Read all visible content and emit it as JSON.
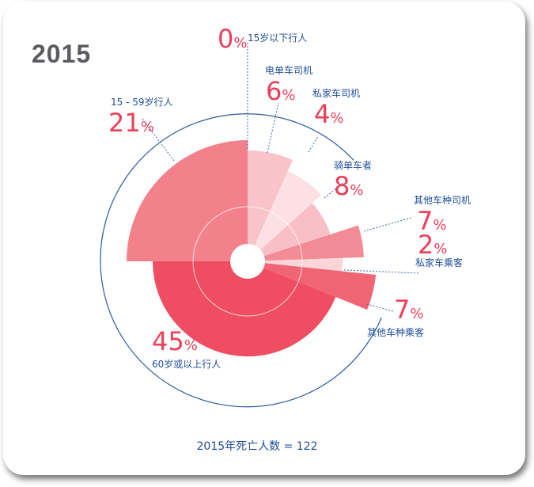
{
  "page": {
    "year_title": "2015",
    "caption": "2015年死亡人数 = 122",
    "colors": {
      "accent": "#ee3e57",
      "text_blue": "#1f4e99",
      "title_gray": "#595b5e"
    }
  },
  "chart_data": {
    "type": "polar-area",
    "title": "2015",
    "total_label": "2015年死亡人数 = 122",
    "unit": "%",
    "segments": [
      {
        "name": "15岁以下行人",
        "value": 0,
        "display": "0",
        "color": "#fbd6da"
      },
      {
        "name": "电单车司机",
        "value": 6,
        "display": "6",
        "color": "#f8c3c9"
      },
      {
        "name": "私家车司机",
        "value": 4,
        "display": "4",
        "color": "#fce0e3"
      },
      {
        "name": "骑单车者",
        "value": 8,
        "display": "8",
        "color": "#f8c0c6"
      },
      {
        "name": "其他车种司机",
        "value": 7,
        "display": "7",
        "color": "#f28b95"
      },
      {
        "name": "私家车乘客",
        "value": 2,
        "display": "2",
        "color": "#fcd5d9"
      },
      {
        "name": "其他车种乘客",
        "value": 7,
        "display": "7",
        "color": "#f06574"
      },
      {
        "name": "60岁或以上行人",
        "value": 45,
        "display": "45",
        "color": "#ef4d61"
      },
      {
        "name": "15 - 59岁行人",
        "value": 21,
        "display": "21",
        "color": "#f2818c"
      }
    ]
  }
}
